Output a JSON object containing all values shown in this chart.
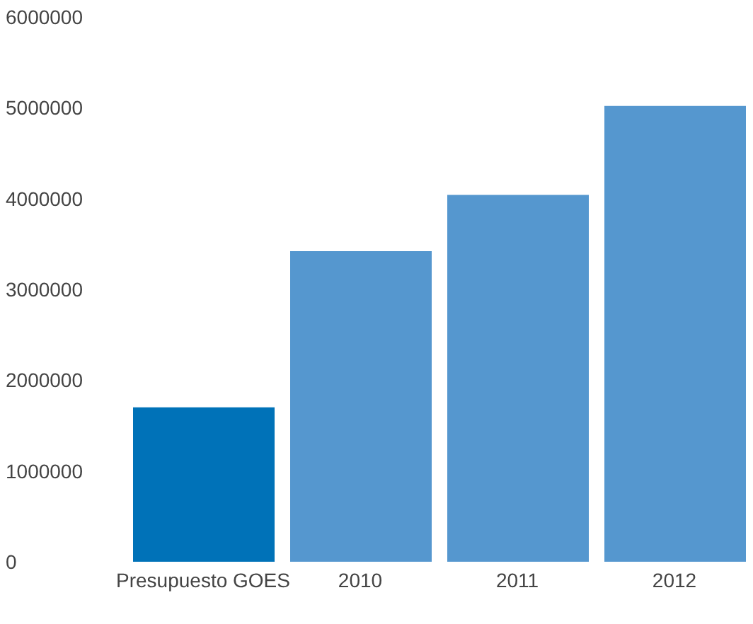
{
  "chart_data": {
    "type": "bar",
    "categories": [
      "Presupuesto GOES",
      "2010",
      "2011",
      "2012"
    ],
    "values": [
      1700000,
      3420000,
      4040000,
      5020000
    ],
    "colors": [
      "#0072b8",
      "#5597cf",
      "#5597cf",
      "#5597cf"
    ],
    "ylim": [
      0,
      6000000
    ],
    "yticks": [
      0,
      1000000,
      2000000,
      3000000,
      4000000,
      5000000,
      6000000
    ],
    "grid": false
  }
}
